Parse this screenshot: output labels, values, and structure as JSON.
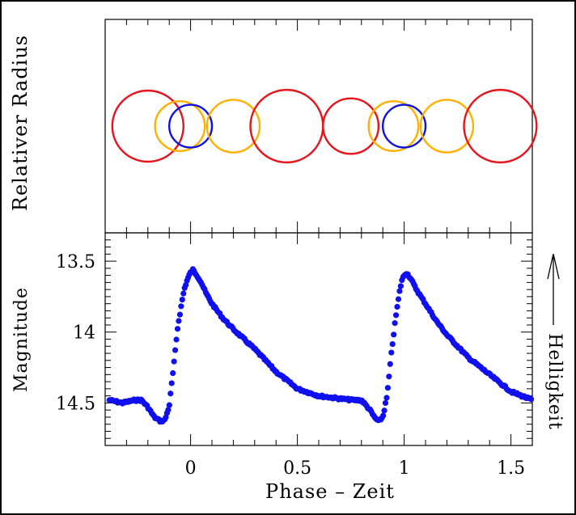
{
  "chart_data": {
    "type": "scatter",
    "xlabel": "Phase – Zeit",
    "x_ticks": [
      "0",
      "0.5",
      "1",
      "1.5"
    ],
    "xlim": [
      -0.4,
      1.6
    ],
    "panels": [
      {
        "name": "radius",
        "ylabel": "Relativer Radius",
        "circles": [
          {
            "phase": -0.2,
            "radius": 1.0,
            "color": "#e8141c"
          },
          {
            "phase": -0.05,
            "radius": 0.7,
            "color": "#ffb000"
          },
          {
            "phase": 0.0,
            "radius": 0.6,
            "color": "#1010e0"
          },
          {
            "phase": 0.2,
            "radius": 0.74,
            "color": "#ffb000"
          },
          {
            "phase": 0.45,
            "radius": 1.02,
            "color": "#e8141c"
          },
          {
            "phase": 0.75,
            "radius": 0.78,
            "color": "#e8141c"
          },
          {
            "phase": 0.95,
            "radius": 0.7,
            "color": "#ffb000"
          },
          {
            "phase": 1.0,
            "radius": 0.6,
            "color": "#1010e0"
          },
          {
            "phase": 1.2,
            "radius": 0.74,
            "color": "#ffb000"
          },
          {
            "phase": 1.45,
            "radius": 1.02,
            "color": "#e8141c"
          }
        ]
      },
      {
        "name": "light-curve",
        "ylabel": "Magnitude",
        "y_ticks": [
          "13.5",
          "14",
          "14.5"
        ],
        "ylim": [
          14.8,
          13.3
        ],
        "y_inverted": true,
        "marker_color": "#1010ee",
        "right_label": "Helligkeit",
        "series": [
          {
            "x": [
              -0.38,
              -0.35,
              -0.32,
              -0.29,
              -0.26,
              -0.23,
              -0.2,
              -0.17,
              -0.14,
              -0.12,
              -0.1,
              -0.08,
              -0.06,
              -0.04,
              -0.03,
              -0.02,
              -0.01,
              0,
              0.01,
              0.02,
              0.03,
              0.05,
              0.07,
              0.1,
              0.15,
              0.2,
              0.3,
              0.4,
              0.5,
              0.6,
              0.7,
              0.76,
              0.8,
              0.84,
              0.86,
              0.88,
              0.9,
              0.92,
              0.94,
              0.96,
              0.97,
              0.98,
              0.99,
              1,
              1.01,
              1.02,
              1.03,
              1.05,
              1.07,
              1.1,
              1.15,
              1.2,
              1.3,
              1.4,
              1.5,
              1.6
            ],
            "y": [
              14.48,
              14.49,
              14.5,
              14.49,
              14.48,
              14.48,
              14.53,
              14.6,
              14.63,
              14.62,
              14.52,
              14.25,
              13.96,
              13.78,
              13.7,
              13.65,
              13.61,
              13.58,
              13.56,
              13.58,
              13.6,
              13.65,
              13.72,
              13.8,
              13.9,
              13.98,
              14.12,
              14.28,
              14.4,
              14.45,
              14.47,
              14.48,
              14.48,
              14.55,
              14.6,
              14.63,
              14.6,
              14.45,
              14.15,
              13.9,
              13.8,
              13.7,
              13.63,
              13.6,
              13.58,
              13.6,
              13.62,
              13.68,
              13.73,
              13.8,
              13.92,
              14.02,
              14.18,
              14.3,
              14.42,
              14.48
            ]
          }
        ]
      }
    ],
    "grid": false
  }
}
